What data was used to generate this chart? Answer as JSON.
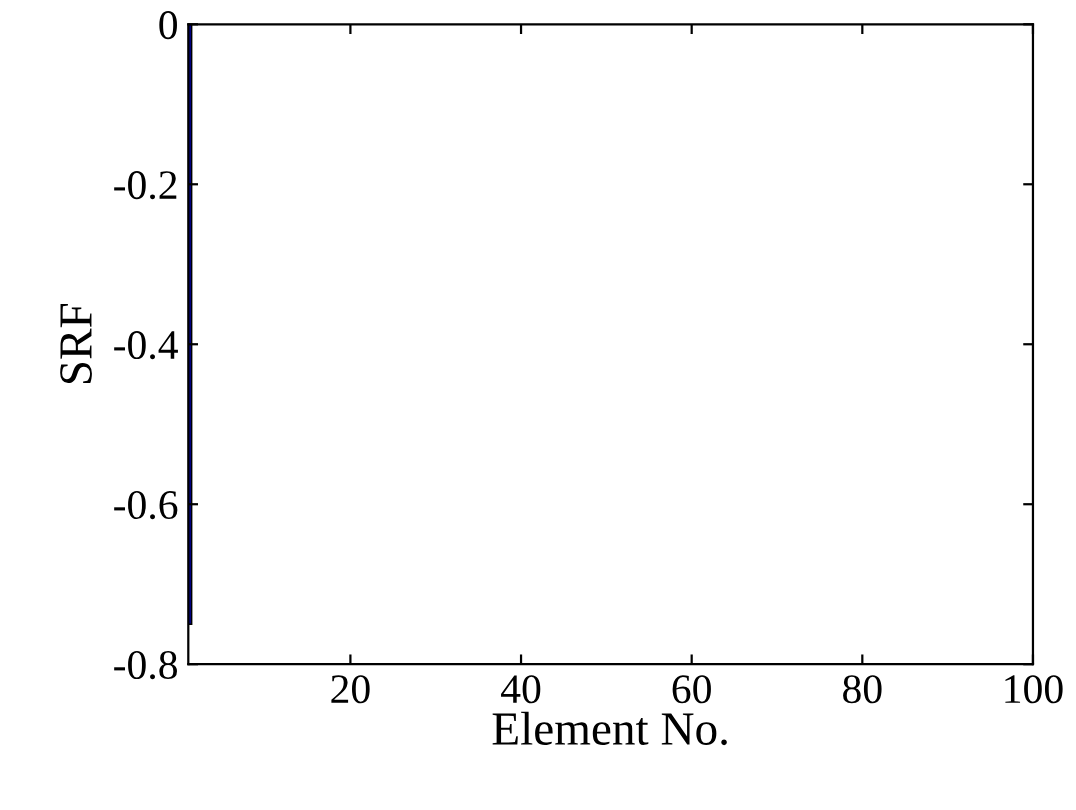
{
  "chart_data": {
    "type": "bar",
    "xlabel": "Element No.",
    "ylabel": "SRF",
    "x": [
      1
    ],
    "values": [
      -0.75
    ],
    "color": "#000080",
    "xlim": [
      1,
      100
    ],
    "xticks": [
      20,
      40,
      60,
      80,
      100
    ],
    "ylim": [
      -0.8,
      0
    ],
    "yticks": [
      -0.8,
      -0.6,
      -0.4,
      -0.2,
      0
    ],
    "grid": false,
    "legend": false
  }
}
